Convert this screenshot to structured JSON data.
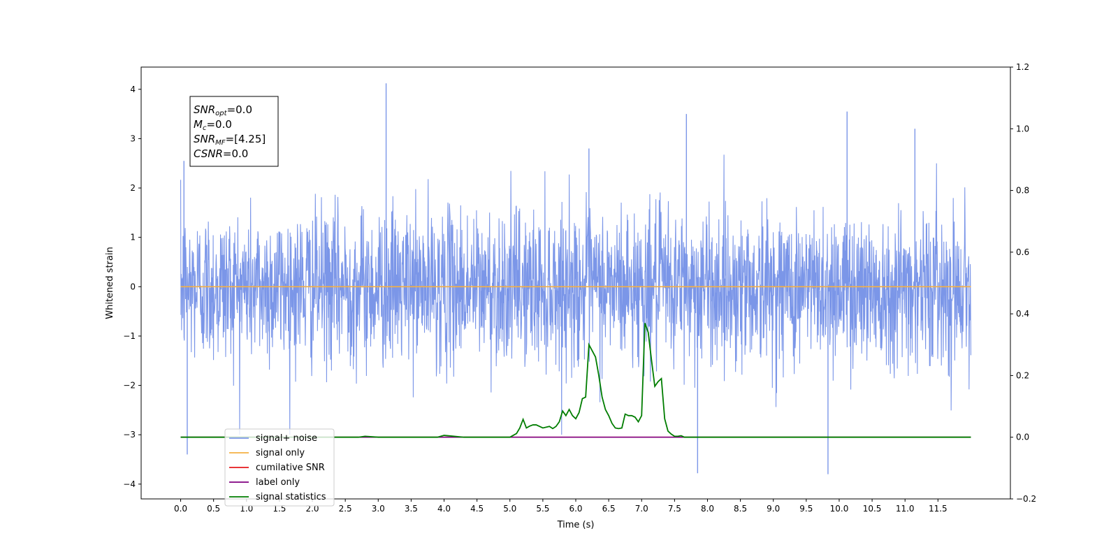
{
  "chart_data": {
    "type": "line",
    "title": "",
    "xlabel": "Time (s)",
    "ylabel": "Whitened strain",
    "ylabel_right": "",
    "xlim": [
      -0.6,
      12.6
    ],
    "ylim": [
      -4.3,
      4.45
    ],
    "ylim_right": [
      -0.2,
      1.2
    ],
    "xticks": [
      0.0,
      0.5,
      1.0,
      1.5,
      2.0,
      2.5,
      3.0,
      3.5,
      4.0,
      4.5,
      5.0,
      5.5,
      6.0,
      6.5,
      7.0,
      7.5,
      8.0,
      8.5,
      9.0,
      9.5,
      10.0,
      10.5,
      11.0,
      11.5
    ],
    "xtick_labels": [
      "0.0",
      "0.5",
      "1.0",
      "1.5",
      "2.0",
      "2.5",
      "3.0",
      "3.5",
      "4.0",
      "4.5",
      "5.0",
      "5.5",
      "6.0",
      "6.5",
      "7.0",
      "7.5",
      "8.0",
      "8.5",
      "9.0",
      "9.5",
      "10.0",
      "10.5",
      "11.0",
      "11.5"
    ],
    "yticks_left": [
      4,
      3,
      2,
      1,
      0,
      -1,
      -2,
      -3,
      -4
    ],
    "ytick_labels_left": [
      "4",
      "3",
      "2",
      "1",
      "0",
      "−1",
      "−2",
      "−3",
      "−4"
    ],
    "yticks_right": [
      1.2,
      1.0,
      0.8,
      0.6,
      0.4,
      0.2,
      0.0,
      -0.2
    ],
    "ytick_labels_right": [
      "1.2",
      "1.0",
      "0.8",
      "0.6",
      "0.4",
      "0.2",
      "0.0",
      "−0.2"
    ],
    "grid": false,
    "legend_position": "lower-left",
    "series": [
      {
        "name": "signal+ noise",
        "axis": "left",
        "color": "#7b96e8",
        "description_values": "whitened noise, roughly ±1.5 with spikes between −3.8 and 4.1",
        "x_range": [
          0.0,
          12.0
        ],
        "notable_peaks": [
          [
            0.05,
            2.55
          ],
          [
            3.12,
            4.12
          ],
          [
            6.2,
            2.8
          ],
          [
            7.68,
            3.5
          ],
          [
            10.12,
            3.55
          ],
          [
            11.15,
            3.2
          ],
          [
            0.1,
            -3.4
          ],
          [
            7.85,
            -3.78
          ],
          [
            9.83,
            -3.8
          ]
        ]
      },
      {
        "name": "signal only",
        "axis": "left",
        "color": "#f5b042",
        "x": [
          0.0,
          12.0
        ],
        "y": [
          0.0,
          0.0
        ]
      },
      {
        "name": "cumilative SNR",
        "axis": "right",
        "color": "#e41a1c",
        "x": [
          0.0,
          12.0
        ],
        "y": [
          0.0,
          0.0
        ]
      },
      {
        "name": "label only",
        "axis": "right",
        "color": "#800080",
        "x": [
          0.0,
          12.0
        ],
        "y": [
          0.0,
          0.0
        ]
      },
      {
        "name": "signal statistics",
        "axis": "right",
        "color": "#007d00",
        "x": [
          0.0,
          2.7,
          2.8,
          3.0,
          3.5,
          3.9,
          4.0,
          4.1,
          4.3,
          5.0,
          5.1,
          5.15,
          5.2,
          5.25,
          5.3,
          5.35,
          5.4,
          5.5,
          5.6,
          5.65,
          5.7,
          5.75,
          5.8,
          5.85,
          5.9,
          5.95,
          6.0,
          6.05,
          6.1,
          6.15,
          6.2,
          6.25,
          6.3,
          6.35,
          6.4,
          6.45,
          6.5,
          6.55,
          6.6,
          6.65,
          6.7,
          6.75,
          6.8,
          6.85,
          6.9,
          6.95,
          7.0,
          7.05,
          7.1,
          7.15,
          7.2,
          7.25,
          7.3,
          7.35,
          7.4,
          7.45,
          7.5,
          7.55,
          7.6,
          7.65,
          7.7,
          7.8,
          7.9,
          8.0,
          12.0
        ],
        "y": [
          0.0,
          0.0,
          0.003,
          0.0,
          0.0,
          0.0,
          0.006,
          0.004,
          0.0,
          0.0,
          0.012,
          0.03,
          0.058,
          0.03,
          0.036,
          0.04,
          0.04,
          0.03,
          0.035,
          0.028,
          0.035,
          0.05,
          0.085,
          0.07,
          0.09,
          0.07,
          0.06,
          0.08,
          0.125,
          0.13,
          0.3,
          0.28,
          0.26,
          0.2,
          0.13,
          0.09,
          0.07,
          0.045,
          0.03,
          0.028,
          0.03,
          0.075,
          0.07,
          0.07,
          0.065,
          0.05,
          0.07,
          0.37,
          0.34,
          0.25,
          0.165,
          0.18,
          0.19,
          0.06,
          0.02,
          0.01,
          0.003,
          0.003,
          0.005,
          0.0,
          0.0,
          0.0,
          0.0,
          0.0,
          0.0
        ]
      }
    ],
    "annotation": {
      "lines": [
        {
          "sym": "SNR",
          "sub": "opt",
          "value": "=0.0"
        },
        {
          "sym": "M",
          "sub": "c",
          "value": "=0.0"
        },
        {
          "sym": "SNR",
          "sub": "MF",
          "value": "=[4.25]"
        },
        {
          "sym": "CSNR",
          "sub": "",
          "value": "=0.0"
        }
      ]
    }
  }
}
